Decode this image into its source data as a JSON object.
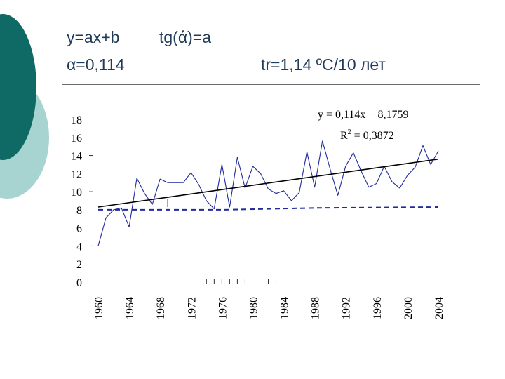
{
  "slide": {
    "equation_line": "y=ax+b",
    "tangent_line": "tg(ά)=a",
    "alpha_line": "α=0,114",
    "trend_line": "tr=1,14 ºC/10 лет"
  },
  "colors": {
    "header_text": "#1f3b57",
    "decor_dark": "#0f6a66",
    "decor_light": "#a7d3d1",
    "series_blue": "#1f2a9e",
    "trend_black": "#000000",
    "baseline_dashed": "#1f2a9e"
  },
  "chart_data": {
    "type": "line",
    "title": "",
    "xlabel": "",
    "ylabel": "",
    "xlim": [
      1960,
      2004
    ],
    "ylim": [
      0,
      18
    ],
    "yticks": [
      "0",
      "2",
      "4",
      "6",
      "8",
      "10",
      "12",
      "14",
      "16",
      "18"
    ],
    "xticks": [
      "1960",
      "1964",
      "1968",
      "1972",
      "1976",
      "1980",
      "1984",
      "1988",
      "1992",
      "1996",
      "2000",
      "2004"
    ],
    "annotation_equation": "y = 0,114x − 8,1759",
    "annotation_r2_prefix": "R",
    "annotation_r2_sup": "2",
    "annotation_r2_value": " = 0,3872",
    "series": [
      {
        "style": "solid-thin",
        "x": [
          1960,
          1961,
          1962,
          1963,
          1964,
          1965,
          1966,
          1967,
          1968,
          1969,
          1970,
          1971,
          1972,
          1973,
          1974,
          1975,
          1976,
          1977,
          1978,
          1979,
          1980,
          1981,
          1982,
          1983,
          1984,
          1985,
          1986,
          1987,
          1988,
          1989,
          1990,
          1991,
          1992,
          1993,
          1994,
          1995,
          1996,
          1997,
          1998,
          1999,
          2000,
          2001,
          2002,
          2003,
          2004
        ],
        "y": [
          4.0,
          7.1,
          8.0,
          8.2,
          6.1,
          11.5,
          9.8,
          8.6,
          11.4,
          11.0,
          11.0,
          11.0,
          12.1,
          10.8,
          9.0,
          8.1,
          13.0,
          8.3,
          13.8,
          10.4,
          12.8,
          12.0,
          10.3,
          9.8,
          10.1,
          9.0,
          9.9,
          14.4,
          10.5,
          15.6,
          12.5,
          9.6,
          12.8,
          14.3,
          12.3,
          10.5,
          10.9,
          12.8,
          11.1,
          10.4,
          11.8,
          12.7,
          15.1,
          13.0,
          14.5
        ]
      },
      {
        "style": "trend-solid",
        "x": [
          1960,
          2004
        ],
        "y": [
          8.3,
          13.6
        ]
      },
      {
        "style": "dashed",
        "x": [
          1960,
          1976,
          1988,
          2004
        ],
        "y": [
          8.0,
          8.0,
          8.2,
          8.3
        ]
      }
    ]
  }
}
